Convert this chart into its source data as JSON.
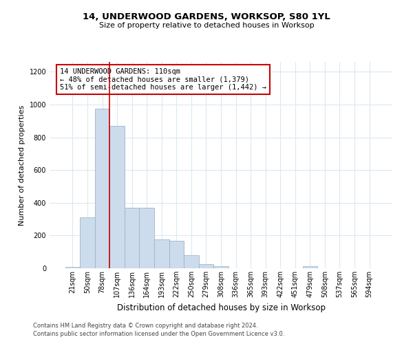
{
  "title1": "14, UNDERWOOD GARDENS, WORKSOP, S80 1YL",
  "title2": "Size of property relative to detached houses in Worksop",
  "xlabel": "Distribution of detached houses by size in Worksop",
  "ylabel": "Number of detached properties",
  "categories": [
    "21sqm",
    "50sqm",
    "78sqm",
    "107sqm",
    "136sqm",
    "164sqm",
    "193sqm",
    "222sqm",
    "250sqm",
    "279sqm",
    "308sqm",
    "336sqm",
    "365sqm",
    "393sqm",
    "422sqm",
    "451sqm",
    "479sqm",
    "508sqm",
    "537sqm",
    "565sqm",
    "594sqm"
  ],
  "bar_heights": [
    10,
    310,
    975,
    870,
    370,
    370,
    175,
    170,
    80,
    25,
    13,
    0,
    0,
    0,
    0,
    0,
    12,
    0,
    0,
    0,
    0
  ],
  "bar_color": "#ccdcec",
  "bar_edge_color": "#9ab4cc",
  "vline_x": 2.5,
  "vline_color": "#cc0000",
  "annotation_text": "14 UNDERWOOD GARDENS: 110sqm\n← 48% of detached houses are smaller (1,379)\n51% of semi-detached houses are larger (1,442) →",
  "annotation_box_color": "#ffffff",
  "annotation_box_edge": "#cc0000",
  "ylim": [
    0,
    1260
  ],
  "yticks": [
    0,
    200,
    400,
    600,
    800,
    1000,
    1200
  ],
  "footer1": "Contains HM Land Registry data © Crown copyright and database right 2024.",
  "footer2": "Contains public sector information licensed under the Open Government Licence v3.0.",
  "background_color": "#ffffff",
  "grid_color": "#dce8f0",
  "title1_fontsize": 9.5,
  "title2_fontsize": 8,
  "ylabel_fontsize": 8,
  "xlabel_fontsize": 8.5,
  "annotation_fontsize": 7.5,
  "tick_fontsize": 7,
  "footer_fontsize": 6
}
